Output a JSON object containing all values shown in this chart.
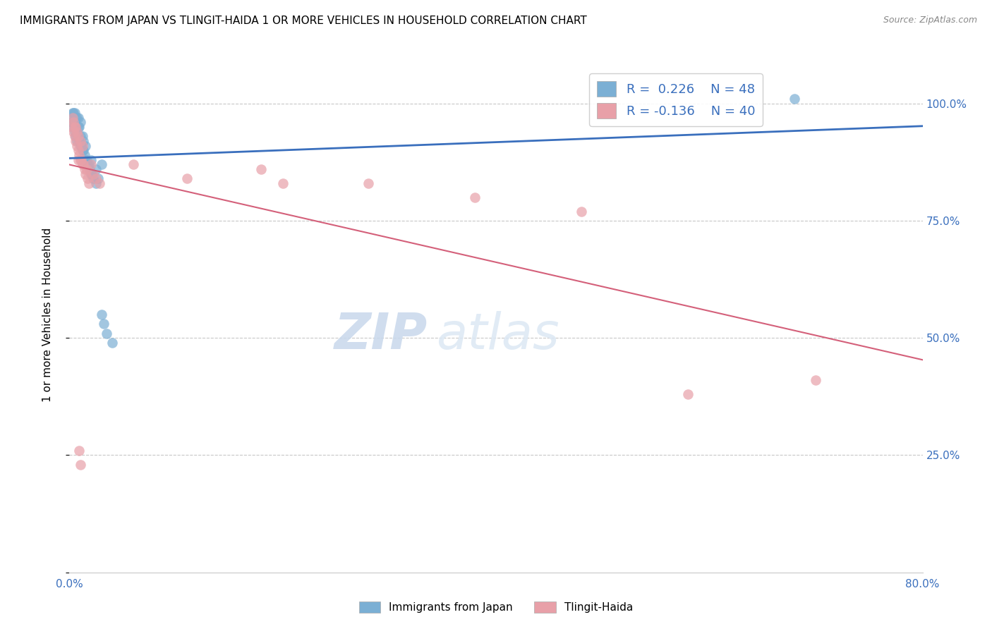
{
  "title": "IMMIGRANTS FROM JAPAN VS TLINGIT-HAIDA 1 OR MORE VEHICLES IN HOUSEHOLD CORRELATION CHART",
  "source": "Source: ZipAtlas.com",
  "ylabel": "1 or more Vehicles in Household",
  "xlim": [
    0.0,
    0.8
  ],
  "ylim": [
    0.0,
    1.1
  ],
  "xticks": [
    0.0,
    0.1,
    0.2,
    0.3,
    0.4,
    0.5,
    0.6,
    0.7,
    0.8
  ],
  "xticklabels": [
    "0.0%",
    "",
    "",
    "",
    "",
    "",
    "",
    "",
    "80.0%"
  ],
  "ytick_vals": [
    0.0,
    0.25,
    0.5,
    0.75,
    1.0
  ],
  "ytick_labels": [
    "",
    "25.0%",
    "50.0%",
    "75.0%",
    "100.0%"
  ],
  "blue_color": "#7bafd4",
  "pink_color": "#e8a0a8",
  "blue_line_color": "#3a6fbd",
  "pink_line_color": "#d4607a",
  "legend_r_blue": "0.226",
  "legend_n_blue": "48",
  "legend_r_pink": "-0.136",
  "legend_n_pink": "40",
  "watermark_zip": "ZIP",
  "watermark_atlas": "atlas",
  "japan_x": [
    0.002,
    0.003,
    0.003,
    0.004,
    0.004,
    0.004,
    0.005,
    0.005,
    0.005,
    0.006,
    0.006,
    0.006,
    0.007,
    0.007,
    0.007,
    0.008,
    0.008,
    0.008,
    0.009,
    0.009,
    0.01,
    0.01,
    0.01,
    0.011,
    0.012,
    0.012,
    0.013,
    0.013,
    0.014,
    0.015,
    0.015,
    0.016,
    0.017,
    0.018,
    0.019,
    0.02,
    0.021,
    0.022,
    0.025,
    0.027,
    0.03,
    0.032,
    0.035,
    0.04,
    0.02,
    0.025,
    0.68,
    0.03
  ],
  "japan_y": [
    0.96,
    0.97,
    0.98,
    0.95,
    0.96,
    0.98,
    0.94,
    0.96,
    0.98,
    0.93,
    0.95,
    0.97,
    0.92,
    0.94,
    0.97,
    0.93,
    0.95,
    0.97,
    0.92,
    0.95,
    0.91,
    0.93,
    0.96,
    0.91,
    0.9,
    0.93,
    0.9,
    0.92,
    0.89,
    0.88,
    0.91,
    0.88,
    0.87,
    0.87,
    0.86,
    0.85,
    0.85,
    0.84,
    0.83,
    0.84,
    0.55,
    0.53,
    0.51,
    0.49,
    0.88,
    0.86,
    1.01,
    0.87
  ],
  "tlingit_x": [
    0.002,
    0.003,
    0.004,
    0.004,
    0.005,
    0.005,
    0.006,
    0.006,
    0.007,
    0.007,
    0.008,
    0.008,
    0.009,
    0.01,
    0.01,
    0.011,
    0.012,
    0.013,
    0.014,
    0.015,
    0.016,
    0.017,
    0.018,
    0.02,
    0.022,
    0.025,
    0.028,
    0.06,
    0.11,
    0.18,
    0.2,
    0.28,
    0.38,
    0.48,
    0.58,
    0.7,
    0.008,
    0.009,
    0.01,
    0.012
  ],
  "tlingit_y": [
    0.95,
    0.97,
    0.94,
    0.96,
    0.93,
    0.95,
    0.92,
    0.95,
    0.91,
    0.94,
    0.9,
    0.93,
    0.89,
    0.88,
    0.92,
    0.88,
    0.87,
    0.87,
    0.86,
    0.85,
    0.86,
    0.84,
    0.83,
    0.87,
    0.85,
    0.84,
    0.83,
    0.87,
    0.84,
    0.86,
    0.83,
    0.83,
    0.8,
    0.77,
    0.38,
    0.41,
    0.88,
    0.26,
    0.23,
    0.91
  ]
}
